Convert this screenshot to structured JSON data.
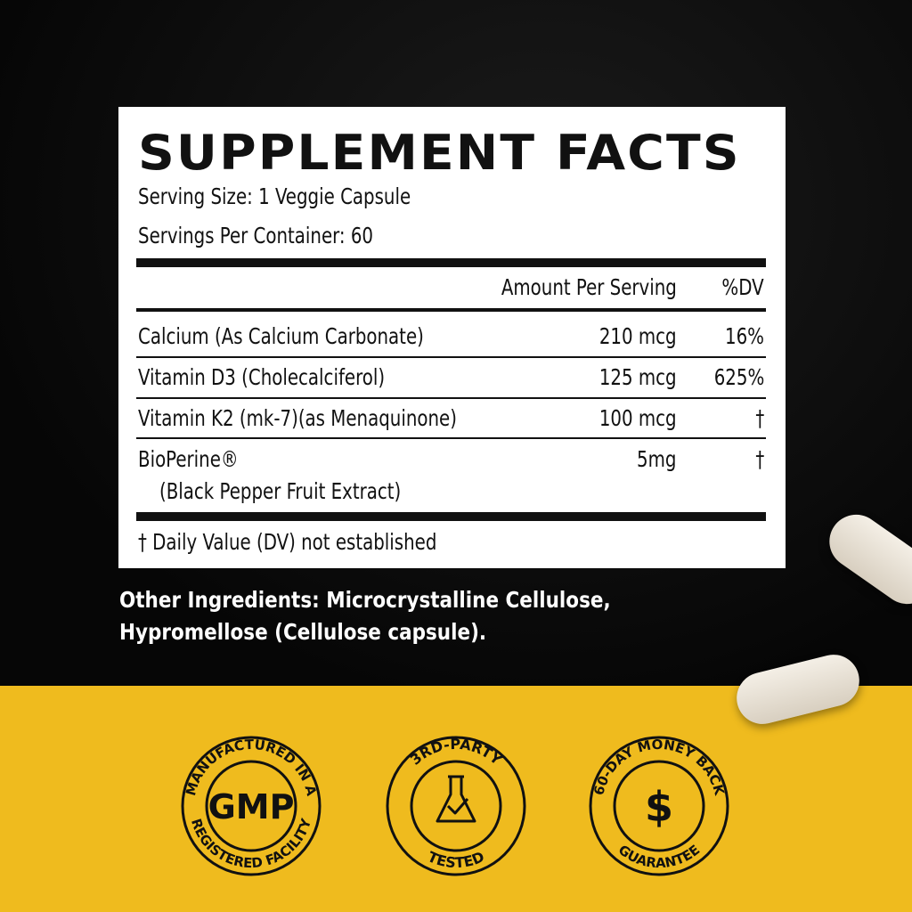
{
  "facts": {
    "title": "SUPPLEMENT FACTS",
    "serving_size": "Serving Size: 1 Veggie Capsule",
    "servings_per_container": "Servings Per Container: 60",
    "header_amount": "Amount Per Serving",
    "header_dv": "%DV",
    "rows": [
      {
        "name": "Calcium (As Calcium Carbonate)",
        "amount": "210 mcg",
        "dv": "16%"
      },
      {
        "name": "Vitamin D3 (Cholecalciferol)",
        "amount": "125 mcg",
        "dv": "625%"
      },
      {
        "name": "Vitamin K2 (mk-7)(as Menaquinone)",
        "amount": "100 mcg",
        "dv": "†"
      },
      {
        "name": "BioPerine®",
        "sub": "(Black Pepper Fruit Extract)",
        "amount": "5mg",
        "dv": "†"
      }
    ],
    "footnote": "† Daily Value (DV) not established"
  },
  "other_ingredients": "Other Ingredients: Microcrystalline Cellulose, Hypromellose (Cellulose capsule).",
  "badges": [
    {
      "top": "MANUFACTURED IN A",
      "center": "GMP",
      "bottom": "REGISTERED FACILITY"
    },
    {
      "top": "3RD-PARTY",
      "icon": "flask-check-icon",
      "bottom": "TESTED"
    },
    {
      "top": "60-DAY MONEY BACK",
      "center": "$",
      "bottom": "GUARANTEE"
    }
  ],
  "colors": {
    "accent": "#efbb1e",
    "background": "#0b0b0b"
  }
}
